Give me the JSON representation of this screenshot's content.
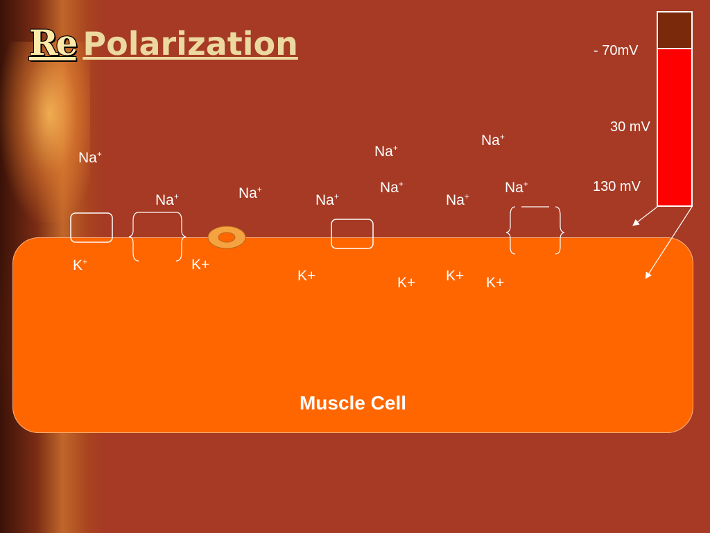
{
  "title": {
    "prefix": "Re",
    "main": "Polarization"
  },
  "meter": {
    "labels": [
      "-  70mV",
      "30 mV",
      "130 mV"
    ],
    "fill_color": "#FF0000",
    "top_color": "#7A2A0A"
  },
  "ions": {
    "sodium_label": "Na",
    "sodium_charge": "+",
    "potassium_label": "K",
    "potassium_charge": "+"
  },
  "cell": {
    "label": "Muscle Cell",
    "color": "#FF6600"
  },
  "colors": {
    "background": "#A63A24",
    "title": "#EBD9A0"
  }
}
